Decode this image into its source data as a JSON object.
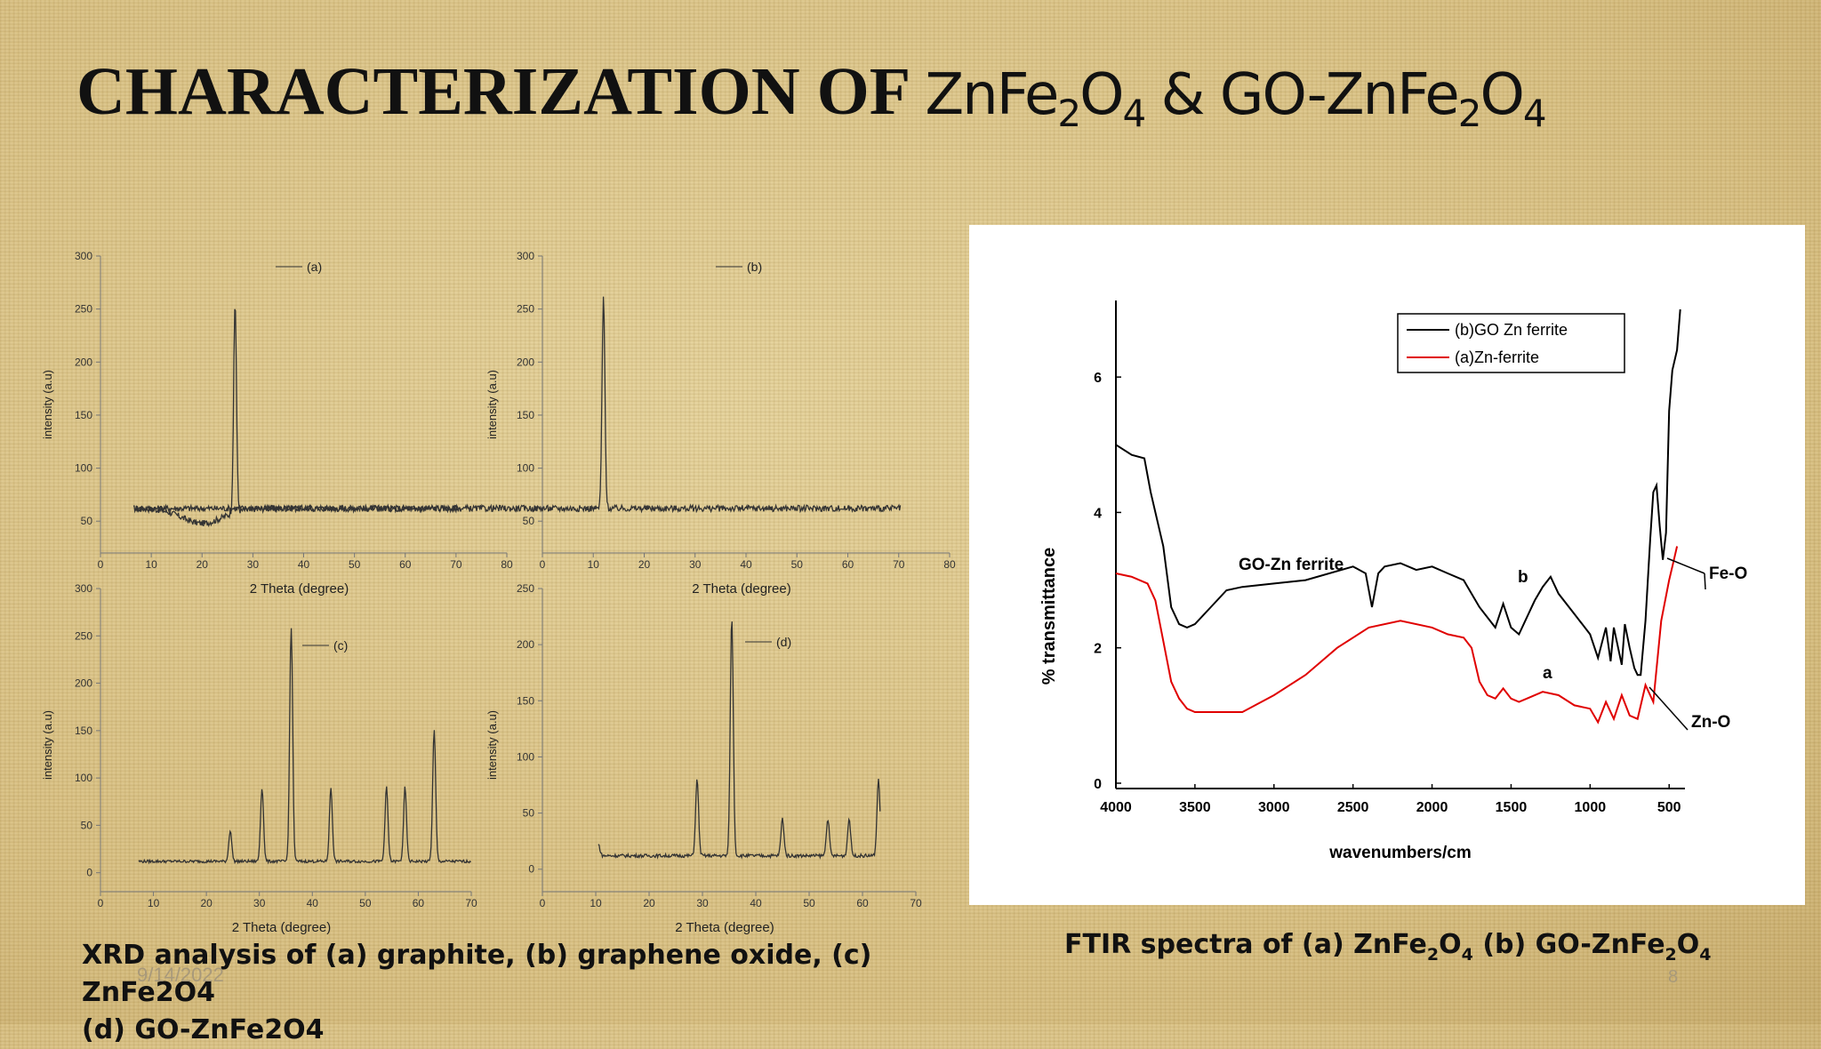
{
  "title": {
    "part1": "CHARACTERIZATION OF ",
    "zn1": "ZnFe",
    "sub2a": "2",
    "o1": "O",
    "sub4a": "4",
    "amp": " & GO-ZnFe",
    "sub2b": "2",
    "o2": "O",
    "sub4b": "4"
  },
  "footer": {
    "date": "9/14/2022",
    "page_number": "8"
  },
  "captions": {
    "xrd_line1": "XRD analysis of (a) graphite, (b) graphene oxide, (c) ZnFe2O4",
    "xrd_line2": "(d) GO-ZnFe2O4",
    "ftir": {
      "t1": "FTIR spectra of (a) ZnFe",
      "s1": "2",
      "t2": "O",
      "s2": "4",
      "t3": " (b) GO-ZnFe",
      "s3": "2",
      "t4": "O",
      "s4": "4"
    }
  },
  "colors": {
    "background": "#dcc488",
    "xrd_line": "#333333",
    "ftir_black": "#000000",
    "ftir_red": "#e00000"
  },
  "chart_data": [
    {
      "type": "line",
      "panel": "a",
      "xlabel": "2 Theta (degree)",
      "ylabel": "intensity (a.u)",
      "xlim": [
        0,
        80
      ],
      "ylim": [
        20,
        300
      ],
      "xticks": [
        0,
        10,
        20,
        30,
        40,
        50,
        60,
        70,
        80
      ],
      "yticks": [
        50,
        100,
        150,
        200,
        250,
        300
      ],
      "legend": "(a)",
      "baseline": 62,
      "noise": 3,
      "dips": [
        {
          "x": 20,
          "y": 48
        }
      ],
      "peaks": [
        {
          "x": 26.5,
          "y": 260
        }
      ]
    },
    {
      "type": "line",
      "panel": "b",
      "xlabel": "2 Theta (degree)",
      "ylabel": "intensity (a.u)",
      "xlim": [
        0,
        80
      ],
      "ylim": [
        20,
        300
      ],
      "xticks": [
        0,
        10,
        20,
        30,
        40,
        50,
        60,
        70,
        80
      ],
      "yticks": [
        50,
        100,
        150,
        200,
        250,
        300
      ],
      "legend": "(b)",
      "baseline": 62,
      "noise": 3,
      "dips": [],
      "peaks": [
        {
          "x": 12,
          "y": 260
        }
      ]
    },
    {
      "type": "line",
      "panel": "c",
      "xlabel": "2 Theta (degree)",
      "ylabel": "intensity (a.u)",
      "xlim": [
        0,
        70
      ],
      "ylim": [
        -20,
        300
      ],
      "xticks": [
        0,
        10,
        20,
        30,
        40,
        50,
        60,
        70
      ],
      "yticks": [
        0,
        50,
        100,
        150,
        200,
        250,
        300
      ],
      "legend": "(c)",
      "baseline": 12,
      "noise": 1.5,
      "dips": [],
      "peaks": [
        {
          "x": 24.5,
          "y": 45
        },
        {
          "x": 30.5,
          "y": 90
        },
        {
          "x": 36,
          "y": 260
        },
        {
          "x": 43.5,
          "y": 90
        },
        {
          "x": 54,
          "y": 90
        },
        {
          "x": 57.5,
          "y": 90
        },
        {
          "x": 63,
          "y": 150
        }
      ]
    },
    {
      "type": "line",
      "panel": "d",
      "xlabel": "2 Theta (degree)",
      "ylabel": "intensity (a.u)",
      "xlim": [
        0,
        70
      ],
      "ylim": [
        -20,
        250
      ],
      "xticks": [
        0,
        10,
        20,
        30,
        40,
        50,
        60,
        70
      ],
      "yticks": [
        0,
        50,
        100,
        150,
        200,
        250
      ],
      "legend": "(d)",
      "baseline": 12,
      "noise": 1.5,
      "dips": [],
      "peaks": [
        {
          "x": 10.5,
          "y": 22
        },
        {
          "x": 29,
          "y": 80
        },
        {
          "x": 35.5,
          "y": 225
        },
        {
          "x": 45,
          "y": 45
        },
        {
          "x": 53.5,
          "y": 45
        },
        {
          "x": 57.5,
          "y": 45
        },
        {
          "x": 63,
          "y": 80
        }
      ]
    },
    {
      "type": "line",
      "panel": "ftir",
      "xlabel": "wavenumbers/cm",
      "ylabel": "% transmittance",
      "xlim": [
        4000,
        400
      ],
      "ylim": [
        0,
        7
      ],
      "xticks": [
        4000,
        3500,
        3000,
        2500,
        2000,
        1500,
        1000,
        500
      ],
      "yticks": [
        0,
        2,
        4,
        6
      ],
      "legend": [
        "(b)GO Zn ferrite",
        "(a)Zn-ferrite"
      ],
      "annotations": [
        "GO-Zn ferrite",
        "b",
        "a",
        "Fe-O",
        "Zn-O"
      ],
      "series": [
        {
          "name": "(b)GO Zn ferrite",
          "x": [
            4000,
            3900,
            3820,
            3780,
            3700,
            3650,
            3600,
            3550,
            3500,
            3400,
            3300,
            3200,
            3000,
            2800,
            2500,
            2420,
            2380,
            2340,
            2300,
            2200,
            2100,
            2000,
            1900,
            1800,
            1700,
            1600,
            1550,
            1500,
            1450,
            1400,
            1350,
            1300,
            1250,
            1200,
            1100,
            1000,
            950,
            900,
            870,
            850,
            800,
            780,
            750,
            720,
            700,
            680,
            650,
            620,
            600,
            580,
            560,
            540,
            520,
            500,
            480,
            450,
            430
          ],
          "y": [
            5.0,
            4.85,
            4.8,
            4.3,
            3.5,
            2.6,
            2.35,
            2.3,
            2.35,
            2.6,
            2.85,
            2.9,
            2.95,
            3.0,
            3.2,
            3.1,
            2.6,
            3.1,
            3.2,
            3.25,
            3.15,
            3.2,
            3.1,
            3.0,
            2.6,
            2.3,
            2.65,
            2.3,
            2.2,
            2.45,
            2.7,
            2.9,
            3.05,
            2.8,
            2.5,
            2.2,
            1.85,
            2.3,
            1.8,
            2.3,
            1.75,
            2.35,
            2.0,
            1.7,
            1.6,
            1.6,
            2.4,
            3.6,
            4.3,
            4.4,
            3.8,
            3.3,
            3.7,
            5.5,
            6.1,
            6.4,
            7.0
          ]
        },
        {
          "name": "(a)Zn-ferrite",
          "x": [
            4000,
            3900,
            3800,
            3750,
            3700,
            3650,
            3600,
            3550,
            3500,
            3400,
            3200,
            3000,
            2800,
            2600,
            2400,
            2200,
            2000,
            1900,
            1800,
            1750,
            1700,
            1650,
            1600,
            1550,
            1500,
            1450,
            1400,
            1300,
            1200,
            1100,
            1000,
            950,
            900,
            850,
            800,
            750,
            700,
            650,
            600,
            550,
            500,
            470,
            450
          ],
          "y": [
            3.1,
            3.05,
            2.95,
            2.7,
            2.1,
            1.5,
            1.25,
            1.1,
            1.05,
            1.05,
            1.05,
            1.3,
            1.6,
            2.0,
            2.3,
            2.4,
            2.3,
            2.2,
            2.15,
            2.0,
            1.5,
            1.3,
            1.25,
            1.4,
            1.25,
            1.2,
            1.25,
            1.35,
            1.3,
            1.15,
            1.1,
            0.9,
            1.2,
            0.95,
            1.3,
            1.0,
            0.95,
            1.45,
            1.2,
            2.4,
            3.0,
            3.3,
            3.5
          ]
        }
      ]
    }
  ]
}
